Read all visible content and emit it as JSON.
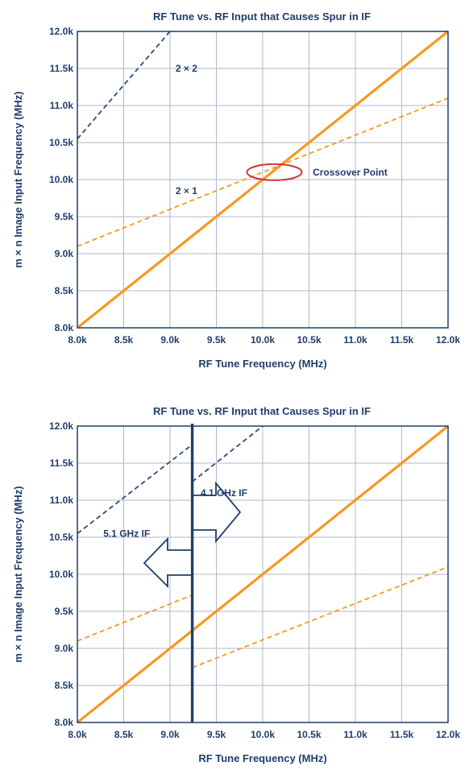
{
  "colors": {
    "orange": "#f39a1f",
    "navy": "#1f3e6b",
    "dark_dash": "#2e4a7a",
    "grid": "#b3b6cc",
    "ellipse": "#d6333c"
  },
  "chart_data": [
    {
      "type": "line",
      "title": "RF Tune vs. RF Input that Causes Spur in IF",
      "xlabel": "RF Tune Frequency (MHz)",
      "ylabel": "m × n Image Input Frequency (MHz)",
      "xlim": [
        8000,
        12000
      ],
      "ylim": [
        8000,
        12000
      ],
      "x_ticks": [
        "8.0k",
        "8.5k",
        "9.0k",
        "9.5k",
        "10.0k",
        "10.5k",
        "11.0k",
        "11.5k",
        "12.0k"
      ],
      "y_ticks": [
        "8.0k",
        "8.5k",
        "9.0k",
        "9.5k",
        "10.0k",
        "10.5k",
        "11.0k",
        "11.5k",
        "12.0k"
      ],
      "grid": true,
      "series": [
        {
          "style": "solid-orange",
          "points": [
            [
              8000,
              8000
            ],
            [
              12000,
              12000
            ]
          ]
        },
        {
          "name": "2 × 1",
          "style": "dashed-orange",
          "points": [
            [
              8000,
              9100
            ],
            [
              12000,
              11100
            ]
          ]
        },
        {
          "name": "2 × 2",
          "style": "dashed-navy",
          "points": [
            [
              8000,
              10550
            ],
            [
              9000,
              12000
            ]
          ]
        }
      ],
      "annotations": [
        {
          "text": "2 × 2",
          "x": 9060,
          "y": 11500
        },
        {
          "text": "2 × 1",
          "x": 9060,
          "y": 9850
        },
        {
          "text": "Crossover Point",
          "x": 10540,
          "y": 10100
        }
      ],
      "crossover": {
        "x": 10100,
        "y": 10100
      }
    },
    {
      "type": "line",
      "title": "RF Tune vs. RF Input that Causes Spur in IF",
      "xlabel": "RF Tune Frequency (MHz)",
      "ylabel": "m × n Image Input Frequency (MHz)",
      "xlim": [
        8000,
        12000
      ],
      "ylim": [
        8000,
        12000
      ],
      "x_ticks": [
        "8.0k",
        "8.5k",
        "9.0k",
        "9.5k",
        "10.0k",
        "10.5k",
        "11.0k",
        "11.5k",
        "12.0k"
      ],
      "y_ticks": [
        "8.0k",
        "8.5k",
        "9.0k",
        "9.5k",
        "10.0k",
        "10.5k",
        "11.0k",
        "11.5k",
        "12.0k"
      ],
      "grid": true,
      "series": [
        {
          "style": "solid-orange",
          "points": [
            [
              8000,
              8000
            ],
            [
              12000,
              12000
            ]
          ]
        },
        {
          "style": "dashed-orange",
          "points": [
            [
              8000,
              9100
            ],
            [
              9240,
              9720
            ]
          ]
        },
        {
          "style": "dashed-orange",
          "points": [
            [
              9240,
              8740
            ],
            [
              12000,
              10100
            ]
          ]
        },
        {
          "style": "dashed-navy",
          "points": [
            [
              8000,
              10550
            ],
            [
              9240,
              11750
            ]
          ]
        },
        {
          "style": "dashed-navy",
          "points": [
            [
              9240,
              11250
            ],
            [
              10000,
              12000
            ]
          ]
        }
      ],
      "divider_x": 9240,
      "annotations": [
        {
          "text": "4.1 GHz IF",
          "x": 9330,
          "y": 11100
        },
        {
          "text": "5.1 GHz IF",
          "x": 8280,
          "y": 10550
        }
      ]
    }
  ]
}
